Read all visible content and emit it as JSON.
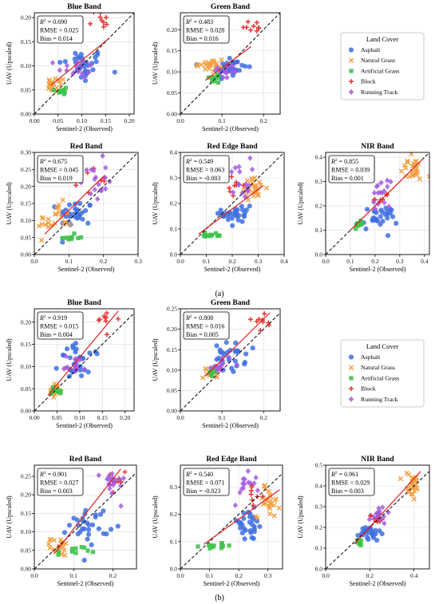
{
  "figure": {
    "panel_labels": [
      "(a)",
      "(b)"
    ],
    "legend": {
      "title": "Land Cover",
      "entries": [
        {
          "name": "Asphalt",
          "marker": "circle",
          "color": "#3f6fe0"
        },
        {
          "name": "Natural Grass",
          "marker": "x",
          "color": "#f4a043"
        },
        {
          "name": "Artificial Grass",
          "marker": "square",
          "color": "#3ec24a"
        },
        {
          "name": "Block",
          "marker": "plus",
          "color": "#e83a3a"
        },
        {
          "name": "Running Track",
          "marker": "diamond",
          "color": "#a35be0"
        }
      ]
    },
    "colors": {
      "fit_line": "#e02020",
      "one_to_one": "#000000",
      "grid": "#dcdcdc"
    }
  },
  "chart_data": [
    {
      "type": "scatter",
      "panel": "a",
      "title": "Blue Band",
      "xlabel": "Sentinel-2 (Observed)",
      "ylabel": "UAV (Upscaled)",
      "xlim": [
        0,
        0.21
      ],
      "ylim": [
        0,
        0.21
      ],
      "xticks": [
        "0.00",
        "0.05",
        "0.10",
        "0.15",
        "0.20"
      ],
      "yticks": [
        "0.00",
        "0.05",
        "0.10",
        "0.15",
        "0.20"
      ],
      "stats": {
        "r2": "0.690",
        "rmse": "RMSE = 0.025",
        "bias": "Bias = 0.014"
      },
      "fit": [
        [
          0.035,
          0.06
        ],
        [
          0.155,
          0.155
        ]
      ],
      "clusters": [
        {
          "cls": "Asphalt",
          "cx": 0.1,
          "cy": 0.1,
          "sx": 0.025,
          "sy": 0.018,
          "n": 32
        },
        {
          "cls": "Natural Grass",
          "cx": 0.045,
          "cy": 0.06,
          "sx": 0.01,
          "sy": 0.008,
          "n": 22
        },
        {
          "cls": "Artificial Grass",
          "cx": 0.06,
          "cy": 0.05,
          "sx": 0.01,
          "sy": 0.005,
          "n": 10
        },
        {
          "cls": "Block",
          "cx": 0.135,
          "cy": 0.195,
          "sx": 0.013,
          "sy": 0.012,
          "n": 9
        },
        {
          "cls": "Running Track",
          "cx": 0.09,
          "cy": 0.095,
          "sx": 0.02,
          "sy": 0.01,
          "n": 16
        }
      ]
    },
    {
      "type": "scatter",
      "panel": "a",
      "title": "Green Band",
      "xlabel": "Sentinel-2 (Observed)",
      "ylabel": "UAV (Upscaled)",
      "xlim": [
        0,
        0.24
      ],
      "ylim": [
        0,
        0.24
      ],
      "xticks": [
        "0.0",
        "0.1",
        "0.2"
      ],
      "yticks": [
        "0.00",
        "0.05",
        "0.10",
        "0.15",
        "0.20"
      ],
      "stats": {
        "r2": "0.483",
        "rmse": "RMSE = 0.028",
        "bias": "Bias = 0.016"
      },
      "fit": [
        [
          0.06,
          0.08
        ],
        [
          0.17,
          0.16
        ]
      ],
      "clusters": [
        {
          "cls": "Asphalt",
          "cx": 0.12,
          "cy": 0.11,
          "sx": 0.02,
          "sy": 0.015,
          "n": 28
        },
        {
          "cls": "Natural Grass",
          "cx": 0.07,
          "cy": 0.115,
          "sx": 0.02,
          "sy": 0.01,
          "n": 22
        },
        {
          "cls": "Artificial Grass",
          "cx": 0.085,
          "cy": 0.085,
          "sx": 0.008,
          "sy": 0.006,
          "n": 10
        },
        {
          "cls": "Block",
          "cx": 0.175,
          "cy": 0.21,
          "sx": 0.015,
          "sy": 0.01,
          "n": 9
        },
        {
          "cls": "Running Track",
          "cx": 0.11,
          "cy": 0.1,
          "sx": 0.015,
          "sy": 0.01,
          "n": 14
        }
      ]
    },
    {
      "type": "scatter",
      "panel": "a",
      "title": "Red Band",
      "xlabel": "Sentinel-2 (Observed)",
      "ylabel": "UAV (Upscaled)",
      "xlim": [
        0,
        0.3
      ],
      "ylim": [
        0,
        0.3
      ],
      "xticks": [
        "0.0",
        "0.1",
        "0.2",
        "0.3"
      ],
      "yticks": [
        "0.00",
        "0.05",
        "0.10",
        "0.15",
        "0.20",
        "0.25",
        "0.30"
      ],
      "stats": {
        "r2": "0.675",
        "rmse": "RMSE = 0.045",
        "bias": "Bias = 0.019"
      },
      "fit": [
        [
          0.03,
          0.06
        ],
        [
          0.2,
          0.23
        ]
      ],
      "clusters": [
        {
          "cls": "Asphalt",
          "cx": 0.12,
          "cy": 0.12,
          "sx": 0.025,
          "sy": 0.02,
          "n": 30
        },
        {
          "cls": "Natural Grass",
          "cx": 0.06,
          "cy": 0.1,
          "sx": 0.025,
          "sy": 0.025,
          "n": 24
        },
        {
          "cls": "Artificial Grass",
          "cx": 0.1,
          "cy": 0.05,
          "sx": 0.025,
          "sy": 0.005,
          "n": 10
        },
        {
          "cls": "Block",
          "cx": 0.17,
          "cy": 0.22,
          "sx": 0.02,
          "sy": 0.02,
          "n": 9
        },
        {
          "cls": "Running Track",
          "cx": 0.17,
          "cy": 0.22,
          "sx": 0.02,
          "sy": 0.03,
          "n": 18
        }
      ]
    },
    {
      "type": "scatter",
      "panel": "a",
      "title": "Red Edge Band",
      "xlabel": "Sentinel-2 (Observed)",
      "ylabel": "UAV (Upscaled)",
      "xlim": [
        0,
        0.4
      ],
      "ylim": [
        0,
        0.4
      ],
      "xticks": [
        "0.0",
        "0.1",
        "0.2",
        "0.3",
        "0.4"
      ],
      "yticks": [
        "0.0",
        "0.1",
        "0.2",
        "0.3",
        "0.4"
      ],
      "stats": {
        "r2": "0.549",
        "rmse": "RMSE = 0.063",
        "bias": "Bias = -0.003"
      },
      "fit": [
        [
          0.07,
          0.08
        ],
        [
          0.32,
          0.27
        ]
      ],
      "clusters": [
        {
          "cls": "Asphalt",
          "cx": 0.22,
          "cy": 0.16,
          "sx": 0.03,
          "sy": 0.03,
          "n": 30
        },
        {
          "cls": "Natural Grass",
          "cx": 0.28,
          "cy": 0.26,
          "sx": 0.025,
          "sy": 0.02,
          "n": 26
        },
        {
          "cls": "Artificial Grass",
          "cx": 0.12,
          "cy": 0.075,
          "sx": 0.03,
          "sy": 0.006,
          "n": 12
        },
        {
          "cls": "Block",
          "cx": 0.22,
          "cy": 0.27,
          "sx": 0.015,
          "sy": 0.02,
          "n": 8
        },
        {
          "cls": "Running Track",
          "cx": 0.23,
          "cy": 0.3,
          "sx": 0.02,
          "sy": 0.04,
          "n": 16
        }
      ]
    },
    {
      "type": "scatter",
      "panel": "a",
      "title": "NIR Band",
      "xlabel": "Sentinel-2 (Observed)",
      "ylabel": "UAV (Upscaled)",
      "xlim": [
        0,
        0.42
      ],
      "ylim": [
        0,
        0.42
      ],
      "xticks": [
        "0.0",
        "0.1",
        "0.2",
        "0.3",
        "0.4"
      ],
      "yticks": [
        "0.0",
        "0.1",
        "0.2",
        "0.3",
        "0.4"
      ],
      "stats": {
        "r2": "0.855",
        "rmse": "RMSE = 0.039",
        "bias": "Bias = 0.001"
      },
      "fit": [
        [
          0.1,
          0.1
        ],
        [
          0.39,
          0.39
        ]
      ],
      "clusters": [
        {
          "cls": "Asphalt",
          "cx": 0.22,
          "cy": 0.15,
          "sx": 0.035,
          "sy": 0.025,
          "n": 30
        },
        {
          "cls": "Natural Grass",
          "cx": 0.35,
          "cy": 0.35,
          "sx": 0.025,
          "sy": 0.025,
          "n": 26
        },
        {
          "cls": "Artificial Grass",
          "cx": 0.13,
          "cy": 0.125,
          "sx": 0.01,
          "sy": 0.008,
          "n": 10
        },
        {
          "cls": "Block",
          "cx": 0.23,
          "cy": 0.23,
          "sx": 0.015,
          "sy": 0.015,
          "n": 8
        },
        {
          "cls": "Running Track",
          "cx": 0.22,
          "cy": 0.25,
          "sx": 0.02,
          "sy": 0.025,
          "n": 16
        }
      ]
    },
    {
      "type": "scatter",
      "panel": "b",
      "title": "Blue Band",
      "xlabel": "Sentinel-2 (Observed)",
      "ylabel": "UAV (Upscaled)",
      "xlim": [
        0,
        0.22
      ],
      "ylim": [
        0,
        0.23
      ],
      "xticks": [
        "0.00",
        "0.05",
        "0.10",
        "0.15",
        "0.20"
      ],
      "yticks": [
        "0.00",
        "0.05",
        "0.10",
        "0.15",
        "0.20"
      ],
      "stats": {
        "r2": "0.919",
        "rmse": "RMSE = 0.015",
        "bias": "Bias = 0.004"
      },
      "fit": [
        [
          0.03,
          0.035
        ],
        [
          0.185,
          0.225
        ]
      ],
      "clusters": [
        {
          "cls": "Asphalt",
          "cx": 0.1,
          "cy": 0.11,
          "sx": 0.022,
          "sy": 0.02,
          "n": 30
        },
        {
          "cls": "Natural Grass",
          "cx": 0.045,
          "cy": 0.045,
          "sx": 0.008,
          "sy": 0.008,
          "n": 20
        },
        {
          "cls": "Artificial Grass",
          "cx": 0.05,
          "cy": 0.045,
          "sx": 0.008,
          "sy": 0.006,
          "n": 10
        },
        {
          "cls": "Block",
          "cx": 0.16,
          "cy": 0.205,
          "sx": 0.013,
          "sy": 0.012,
          "n": 9
        },
        {
          "cls": "Running Track",
          "cx": 0.09,
          "cy": 0.105,
          "sx": 0.012,
          "sy": 0.01,
          "n": 16
        }
      ]
    },
    {
      "type": "scatter",
      "panel": "b",
      "title": "Green Band",
      "xlabel": "Sentinel-2 (Observed)",
      "ylabel": "UAV (Upscaled)",
      "xlim": [
        0,
        0.24
      ],
      "ylim": [
        0,
        0.25
      ],
      "xticks": [
        "0.0",
        "0.1",
        "0.2"
      ],
      "yticks": [
        "0.00",
        "0.05",
        "0.10",
        "0.15",
        "0.20",
        "0.25"
      ],
      "stats": {
        "r2": "0.808",
        "rmse": "RMSE = 0.016",
        "bias": "Bias = 0.005"
      },
      "fit": [
        [
          0.06,
          0.085
        ],
        [
          0.215,
          0.24
        ]
      ],
      "clusters": [
        {
          "cls": "Asphalt",
          "cx": 0.12,
          "cy": 0.13,
          "sx": 0.018,
          "sy": 0.018,
          "n": 28
        },
        {
          "cls": "Natural Grass",
          "cx": 0.075,
          "cy": 0.1,
          "sx": 0.01,
          "sy": 0.01,
          "n": 20
        },
        {
          "cls": "Artificial Grass",
          "cx": 0.08,
          "cy": 0.095,
          "sx": 0.006,
          "sy": 0.006,
          "n": 10
        },
        {
          "cls": "Block",
          "cx": 0.19,
          "cy": 0.22,
          "sx": 0.015,
          "sy": 0.012,
          "n": 9
        },
        {
          "cls": "Running Track",
          "cx": 0.1,
          "cy": 0.115,
          "sx": 0.012,
          "sy": 0.01,
          "n": 14
        }
      ]
    },
    {
      "type": "scatter",
      "panel": "b",
      "title": "Red Band",
      "xlabel": "Sentinel-2 (Observed)",
      "ylabel": "UAV (Upscaled)",
      "xlim": [
        0,
        0.26
      ],
      "ylim": [
        0,
        0.28
      ],
      "xticks": [
        "0.0",
        "0.1",
        "0.2"
      ],
      "yticks": [
        "0.00",
        "0.05",
        "0.10",
        "0.15",
        "0.20",
        "0.25"
      ],
      "stats": {
        "r2": "0.901",
        "rmse": "RMSE = 0.027",
        "bias": "Bias = 0.003"
      },
      "fit": [
        [
          0.05,
          0.04
        ],
        [
          0.22,
          0.27
        ]
      ],
      "clusters": [
        {
          "cls": "Asphalt",
          "cx": 0.14,
          "cy": 0.12,
          "sx": 0.025,
          "sy": 0.025,
          "n": 30
        },
        {
          "cls": "Natural Grass",
          "cx": 0.065,
          "cy": 0.06,
          "sx": 0.012,
          "sy": 0.012,
          "n": 22
        },
        {
          "cls": "Artificial Grass",
          "cx": 0.1,
          "cy": 0.045,
          "sx": 0.02,
          "sy": 0.008,
          "n": 10
        },
        {
          "cls": "Block",
          "cx": 0.2,
          "cy": 0.23,
          "sx": 0.015,
          "sy": 0.02,
          "n": 9
        },
        {
          "cls": "Running Track",
          "cx": 0.2,
          "cy": 0.23,
          "sx": 0.015,
          "sy": 0.02,
          "n": 18
        }
      ]
    },
    {
      "type": "scatter",
      "panel": "b",
      "title": "Red Edge Band",
      "xlabel": "Sentinel-2 (Observed)",
      "ylabel": "UAV (Upscaled)",
      "xlim": [
        0,
        0.35
      ],
      "ylim": [
        0,
        0.38
      ],
      "xticks": [
        "0.0",
        "0.1",
        "0.2",
        "0.3"
      ],
      "yticks": [
        "0.0",
        "0.1",
        "0.2",
        "0.3"
      ],
      "stats": {
        "r2": "0.540",
        "rmse": "RMSE = 0.071",
        "bias": "Bias = -0.023"
      },
      "fit": [
        [
          0.08,
          0.09
        ],
        [
          0.34,
          0.29
        ]
      ],
      "clusters": [
        {
          "cls": "Asphalt",
          "cx": 0.23,
          "cy": 0.16,
          "sx": 0.03,
          "sy": 0.03,
          "n": 30
        },
        {
          "cls": "Natural Grass",
          "cx": 0.3,
          "cy": 0.25,
          "sx": 0.02,
          "sy": 0.03,
          "n": 26
        },
        {
          "cls": "Artificial Grass",
          "cx": 0.13,
          "cy": 0.085,
          "sx": 0.03,
          "sy": 0.006,
          "n": 12
        },
        {
          "cls": "Block",
          "cx": 0.26,
          "cy": 0.27,
          "sx": 0.015,
          "sy": 0.015,
          "n": 8
        },
        {
          "cls": "Running Track",
          "cx": 0.22,
          "cy": 0.31,
          "sx": 0.02,
          "sy": 0.035,
          "n": 16
        }
      ]
    },
    {
      "type": "scatter",
      "panel": "b",
      "title": "NIR Band",
      "xlabel": "Sentinel-2 (Observed)",
      "ylabel": "UAV (Upscaled)",
      "xlim": [
        0,
        0.47
      ],
      "ylim": [
        0,
        0.5
      ],
      "xticks": [
        "0.0",
        "0.2",
        "0.4"
      ],
      "yticks": [
        "0.0",
        "0.1",
        "0.2",
        "0.3",
        "0.4",
        "0.5"
      ],
      "stats": {
        "r2": "0.961",
        "rmse": "RMSE = 0.029",
        "bias": "Bias = 0.003"
      },
      "fit": [
        [
          0.13,
          0.12
        ],
        [
          0.43,
          0.47
        ]
      ],
      "clusters": [
        {
          "cls": "Asphalt",
          "cx": 0.2,
          "cy": 0.17,
          "sx": 0.025,
          "sy": 0.02,
          "n": 26
        },
        {
          "cls": "Natural Grass",
          "cx": 0.39,
          "cy": 0.4,
          "sx": 0.02,
          "sy": 0.035,
          "n": 26
        },
        {
          "cls": "Artificial Grass",
          "cx": 0.15,
          "cy": 0.135,
          "sx": 0.01,
          "sy": 0.008,
          "n": 10
        },
        {
          "cls": "Block",
          "cx": 0.23,
          "cy": 0.24,
          "sx": 0.015,
          "sy": 0.015,
          "n": 8
        },
        {
          "cls": "Running Track",
          "cx": 0.24,
          "cy": 0.26,
          "sx": 0.02,
          "sy": 0.02,
          "n": 16
        }
      ]
    }
  ]
}
